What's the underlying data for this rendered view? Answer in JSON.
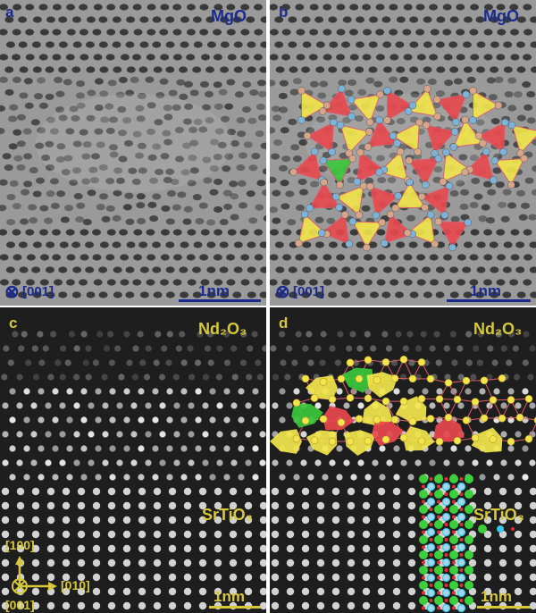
{
  "panels": {
    "a": {
      "label": "a",
      "material": "MgO",
      "zone_axis": "[001]",
      "scale": "1nm"
    },
    "b": {
      "label": "b",
      "material": "MgO",
      "zone_axis": "[001]",
      "scale": "1nm"
    },
    "c": {
      "label": "c",
      "material_top": "Nd₂O₃",
      "material_bottom": "SrTiO₃",
      "scale": "1nm",
      "axes": {
        "up": "[100]",
        "right": "[010]",
        "out": "[001]"
      }
    },
    "d": {
      "label": "d",
      "material_top": "Nd₂O₃",
      "material_bottom": "SrTiO₃",
      "scale": "1nm"
    }
  },
  "colors": {
    "text_navy": "#1b2a8f",
    "text_gold": "#d7c83a",
    "polyhedron_yellow": "#f2e64b",
    "polyhedron_red": "#e8484d",
    "polyhedron_green": "#39c83a",
    "atom_blue": "#7fb2d8",
    "atom_tan": "#d9a58a",
    "atom_green": "#3ccf3c",
    "atom_red": "#e03030",
    "atom_cyan": "#38c8e8"
  }
}
